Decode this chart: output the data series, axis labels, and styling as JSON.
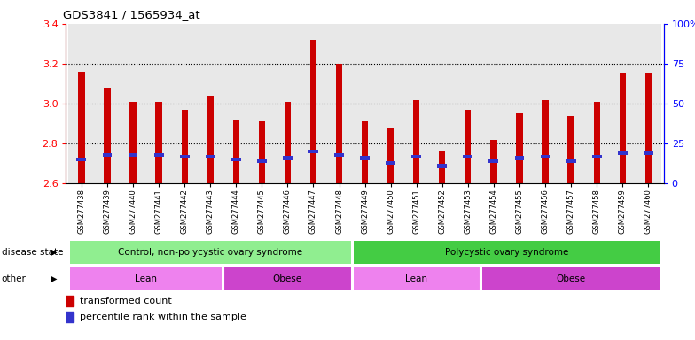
{
  "title": "GDS3841 / 1565934_at",
  "samples": [
    "GSM277438",
    "GSM277439",
    "GSM277440",
    "GSM277441",
    "GSM277442",
    "GSM277443",
    "GSM277444",
    "GSM277445",
    "GSM277446",
    "GSM277447",
    "GSM277448",
    "GSM277449",
    "GSM277450",
    "GSM277451",
    "GSM277452",
    "GSM277453",
    "GSM277454",
    "GSM277455",
    "GSM277456",
    "GSM277457",
    "GSM277458",
    "GSM277459",
    "GSM277460"
  ],
  "transformed_count": [
    3.16,
    3.08,
    3.01,
    3.01,
    2.97,
    3.04,
    2.92,
    2.91,
    3.01,
    3.32,
    3.2,
    2.91,
    2.88,
    3.02,
    2.76,
    2.97,
    2.82,
    2.95,
    3.02,
    2.94,
    3.01,
    3.15,
    3.15
  ],
  "percentile_rank": [
    15,
    18,
    18,
    18,
    17,
    17,
    15,
    14,
    16,
    20,
    18,
    16,
    13,
    17,
    11,
    17,
    14,
    16,
    17,
    14,
    17,
    19,
    19
  ],
  "ylim_left": [
    2.6,
    3.4
  ],
  "ylim_right": [
    0,
    100
  ],
  "yticks_left": [
    2.6,
    2.8,
    3.0,
    3.2,
    3.4
  ],
  "yticks_right": [
    0,
    25,
    50,
    75,
    100
  ],
  "ytick_labels_right": [
    "0",
    "25",
    "50",
    "75",
    "100%"
  ],
  "bar_color": "#cc0000",
  "blue_color": "#3333cc",
  "bar_width": 0.25,
  "column_bg_color": "#e8e8e8",
  "disease_state_groups": [
    {
      "label": "Control, non-polycystic ovary syndrome",
      "start": 0,
      "end": 10,
      "color": "#90ee90"
    },
    {
      "label": "Polycystic ovary syndrome",
      "start": 11,
      "end": 22,
      "color": "#44cc44"
    }
  ],
  "other_groups": [
    {
      "label": "Lean",
      "start": 0,
      "end": 5,
      "color": "#ee82ee"
    },
    {
      "label": "Obese",
      "start": 6,
      "end": 10,
      "color": "#cc44cc"
    },
    {
      "label": "Lean",
      "start": 11,
      "end": 15,
      "color": "#ee82ee"
    },
    {
      "label": "Obese",
      "start": 16,
      "end": 22,
      "color": "#cc44cc"
    }
  ],
  "legend_items": [
    {
      "label": "transformed count",
      "color": "#cc0000"
    },
    {
      "label": "percentile rank within the sample",
      "color": "#3333cc"
    }
  ]
}
